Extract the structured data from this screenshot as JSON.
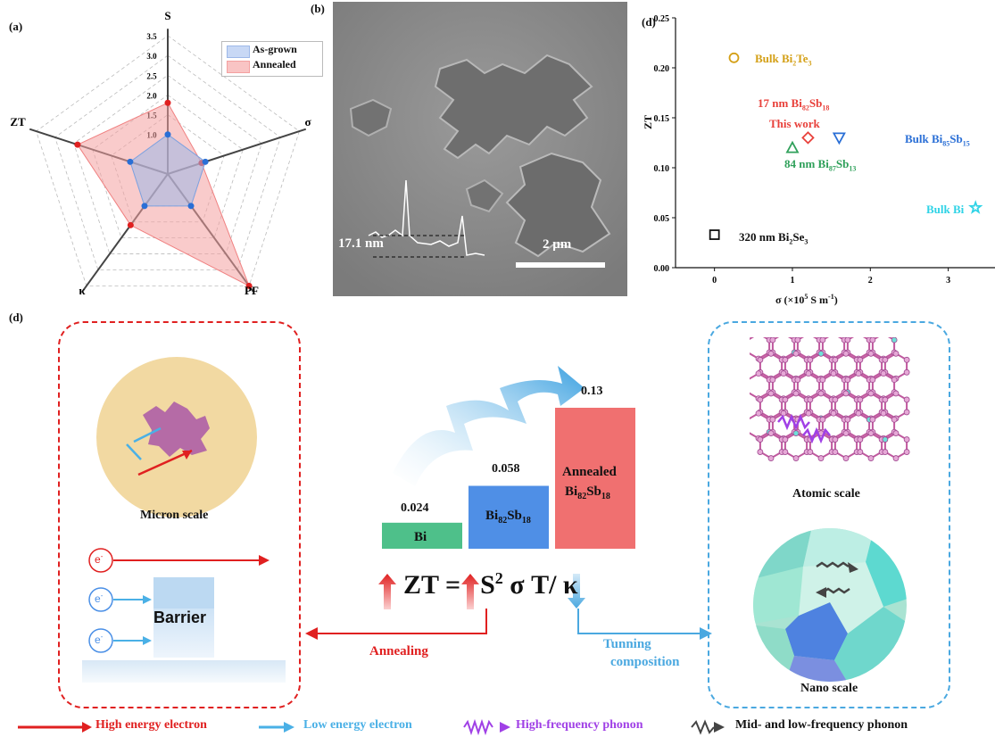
{
  "panel_a": {
    "label": "(a)",
    "axes": [
      "S",
      "σ",
      "PF",
      "κ",
      "ZT"
    ],
    "tick_labels": [
      "1.0",
      "1.5",
      "2.0",
      "2.5",
      "3.0",
      "3.5"
    ],
    "legend": [
      "As-grown",
      "Annealed"
    ],
    "colors": {
      "as_grown": "#9db8e8",
      "annealed": "#f4a0a0",
      "axis": "#444"
    },
    "as_grown_values": {
      "S": 1.0,
      "sigma": 1.0,
      "PF": 1.0,
      "kappa": 1.0,
      "ZT": 1.0
    },
    "annealed_values": {
      "S": 1.8,
      "sigma": 0.9,
      "PF": 3.5,
      "kappa": 1.6,
      "ZT": 2.4
    }
  },
  "panel_b": {
    "label": "(b)",
    "height_label": "17.1 nm",
    "scale_label": "2 μm"
  },
  "panel_d_top": {
    "label": "(d)",
    "xlabel_base": "σ (×10",
    "xlabel_sup": "5",
    "xlabel_mid": " S m",
    "xlabel_sup2": "-1",
    "xlabel_end": ")",
    "ylabel": "ZT",
    "xticks": [
      "0",
      "1",
      "2",
      "3"
    ],
    "yticks": [
      "0.00",
      "0.05",
      "0.10",
      "0.15",
      "0.20",
      "0.25"
    ],
    "this_work": "This work"
  },
  "chart_data": {
    "type": "scatter",
    "xlabel": "σ (×10^5 S m^-1)",
    "ylabel": "ZT",
    "xlim": [
      -0.5,
      3.6
    ],
    "ylim": [
      0,
      0.25
    ],
    "points": [
      {
        "name": "Bulk Bi2Te3",
        "x": 0.25,
        "y": 0.21,
        "marker": "circle",
        "color": "#d4a017"
      },
      {
        "name": "17 nm Bi82Sb18",
        "x": 1.2,
        "y": 0.13,
        "marker": "diamond",
        "color": "#e8413b"
      },
      {
        "name": "Bulk Bi85Sb15",
        "x": 1.6,
        "y": 0.13,
        "marker": "triangle-down",
        "color": "#2a6fd6"
      },
      {
        "name": "84 nm Bi87Sb13",
        "x": 1.0,
        "y": 0.12,
        "marker": "triangle-up",
        "color": "#2fa05a"
      },
      {
        "name": "Bulk Bi",
        "x": 3.35,
        "y": 0.06,
        "marker": "star",
        "color": "#2fd3e6"
      },
      {
        "name": "320 nm Bi2Se3",
        "x": 0.0,
        "y": 0.033,
        "marker": "square",
        "color": "#111111"
      }
    ]
  },
  "panel_d_bottom": {
    "label": "(d)",
    "micron_scale": "Micron scale",
    "barrier": "Barrier",
    "electron": "e",
    "electron_sup": "-",
    "annealing": "Annealing",
    "tuning": "Tunning",
    "composition": "composition",
    "atomic_scale": "Atomic scale",
    "nano_scale": "Nano scale",
    "equation": {
      "zt": "ZT =",
      "s": "S",
      "sup": "2",
      "rest": " σ T/ κ"
    },
    "bars": [
      {
        "label": "Bi",
        "value": 0.024,
        "value_label": "0.024",
        "color": "#4ec08a"
      },
      {
        "label": "Bi",
        "sub1": "82",
        "mid": "Sb",
        "sub2": "18",
        "value": 0.058,
        "value_label": "0.058",
        "color": "#4f8fe6"
      },
      {
        "label_top": "Annealed",
        "label": "Bi",
        "sub1": "82",
        "mid": "Sb",
        "sub2": "18",
        "value": 0.13,
        "value_label": "0.13",
        "color": "#f07070"
      }
    ]
  },
  "legend_bottom": {
    "high_energy": "High energy electron",
    "low_energy": "Low energy electron",
    "high_phonon": "High-frequency phonon",
    "low_phonon": "Mid- and low-frequency phonon"
  }
}
